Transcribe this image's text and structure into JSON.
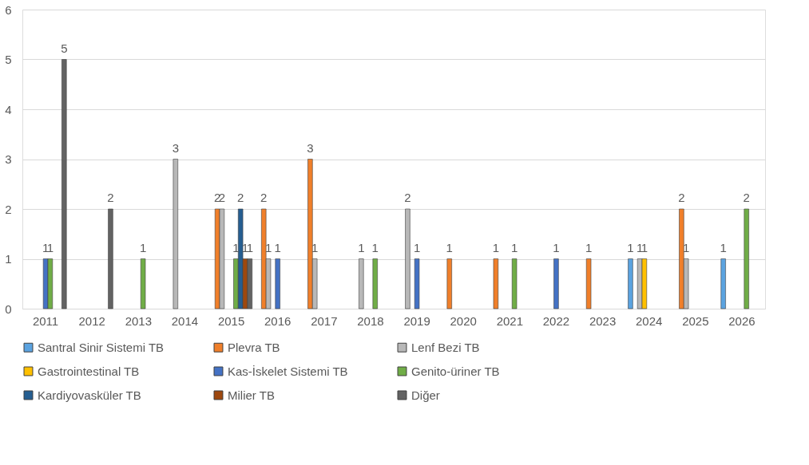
{
  "chart_data": {
    "type": "bar",
    "categories": [
      "2011",
      "2012",
      "2013",
      "2014",
      "2015",
      "2016",
      "2017",
      "2018",
      "2019",
      "2020",
      "2021",
      "2022",
      "2023",
      "2024",
      "2025",
      "2026"
    ],
    "series": [
      {
        "name": "Santral Sinir Sistemi TB",
        "color": "#5ba3e0",
        "values": [
          null,
          null,
          null,
          null,
          null,
          null,
          null,
          null,
          null,
          null,
          null,
          null,
          null,
          1,
          null,
          1
        ]
      },
      {
        "name": "Plevra TB",
        "color": "#f07f2a",
        "values": [
          null,
          null,
          null,
          null,
          2,
          2,
          3,
          null,
          null,
          1,
          1,
          null,
          1,
          null,
          2,
          null
        ]
      },
      {
        "name": "Lenf Bezi TB",
        "color": "#b8b8b8",
        "values": [
          null,
          null,
          null,
          3,
          2,
          1,
          1,
          1,
          2,
          null,
          null,
          null,
          null,
          1,
          1,
          null
        ]
      },
      {
        "name": "Gastrointestinal TB",
        "color": "#ffc000",
        "values": [
          null,
          null,
          null,
          null,
          null,
          null,
          null,
          null,
          null,
          null,
          null,
          null,
          null,
          1,
          null,
          null
        ]
      },
      {
        "name": "Kas-İskelet Sistemi TB",
        "color": "#4472c4",
        "values": [
          1,
          null,
          null,
          null,
          null,
          1,
          null,
          null,
          1,
          null,
          null,
          1,
          null,
          null,
          null,
          null
        ]
      },
      {
        "name": "Genito-üriner TB",
        "color": "#70ad47",
        "values": [
          1,
          null,
          1,
          null,
          1,
          null,
          null,
          1,
          null,
          null,
          1,
          null,
          null,
          null,
          null,
          2
        ]
      },
      {
        "name": "Kardiyovasküler TB",
        "color": "#255e91",
        "values": [
          null,
          null,
          null,
          null,
          2,
          null,
          null,
          null,
          null,
          null,
          null,
          null,
          null,
          null,
          null,
          null
        ]
      },
      {
        "name": "Milier TB",
        "color": "#9e480e",
        "values": [
          null,
          null,
          null,
          null,
          1,
          null,
          null,
          null,
          null,
          null,
          null,
          null,
          null,
          null,
          null,
          null
        ]
      },
      {
        "name": "Diğer",
        "color": "#636363",
        "values": [
          5,
          2,
          null,
          null,
          1,
          null,
          null,
          null,
          null,
          null,
          null,
          null,
          null,
          null,
          null,
          null
        ]
      }
    ],
    "ylim": [
      0,
      6
    ],
    "yticks": [
      0,
      1,
      2,
      3,
      4,
      5,
      6
    ],
    "grid": "y",
    "legend": "bottom",
    "data_labels": true
  }
}
